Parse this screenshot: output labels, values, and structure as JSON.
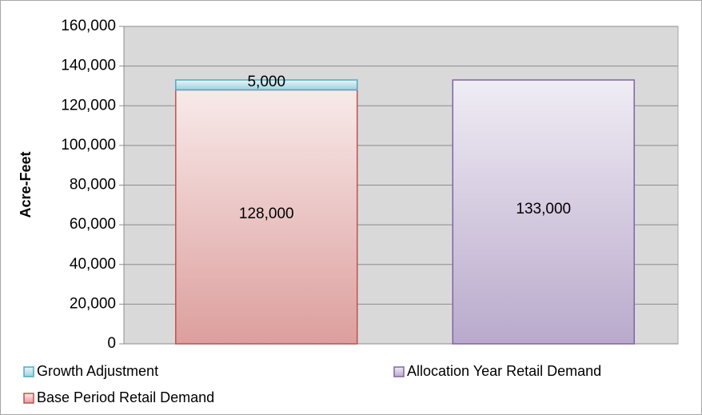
{
  "chart_data": {
    "type": "stacked_bar",
    "y_label": "Acre-Feet",
    "categories": [
      null,
      null
    ],
    "series": [
      {
        "name": "Growth Adjustment",
        "color": "#4bacc6",
        "values": [
          5000,
          null
        ],
        "value_labels": [
          "5,000",
          null
        ]
      },
      {
        "name": "Allocation Year Retail Demand",
        "color": "#8064a2",
        "values": [
          null,
          133000
        ],
        "value_labels": [
          null,
          "133,000"
        ]
      },
      {
        "name": "Base Period Retail Demand",
        "color": "#c0504d",
        "values": [
          128000,
          null
        ],
        "value_labels": [
          "128,000",
          null
        ]
      }
    ],
    "ylim": [
      0,
      160000
    ],
    "yticks": [
      0,
      {
        "value": 20000,
        "label": "20,000"
      },
      {
        "value": 40000,
        "label": "40,000"
      },
      {
        "value": 60000,
        "label": "60,000"
      },
      {
        "value": 80000,
        "label": "80,000"
      },
      {
        "value": 100000,
        "label": "100,000"
      },
      {
        "value": 120000,
        "label": "120,000"
      },
      {
        "value": 140000,
        "label": "140,000"
      },
      {
        "value": 160000,
        "label": "160,000"
      }
    ],
    "grid": true
  }
}
